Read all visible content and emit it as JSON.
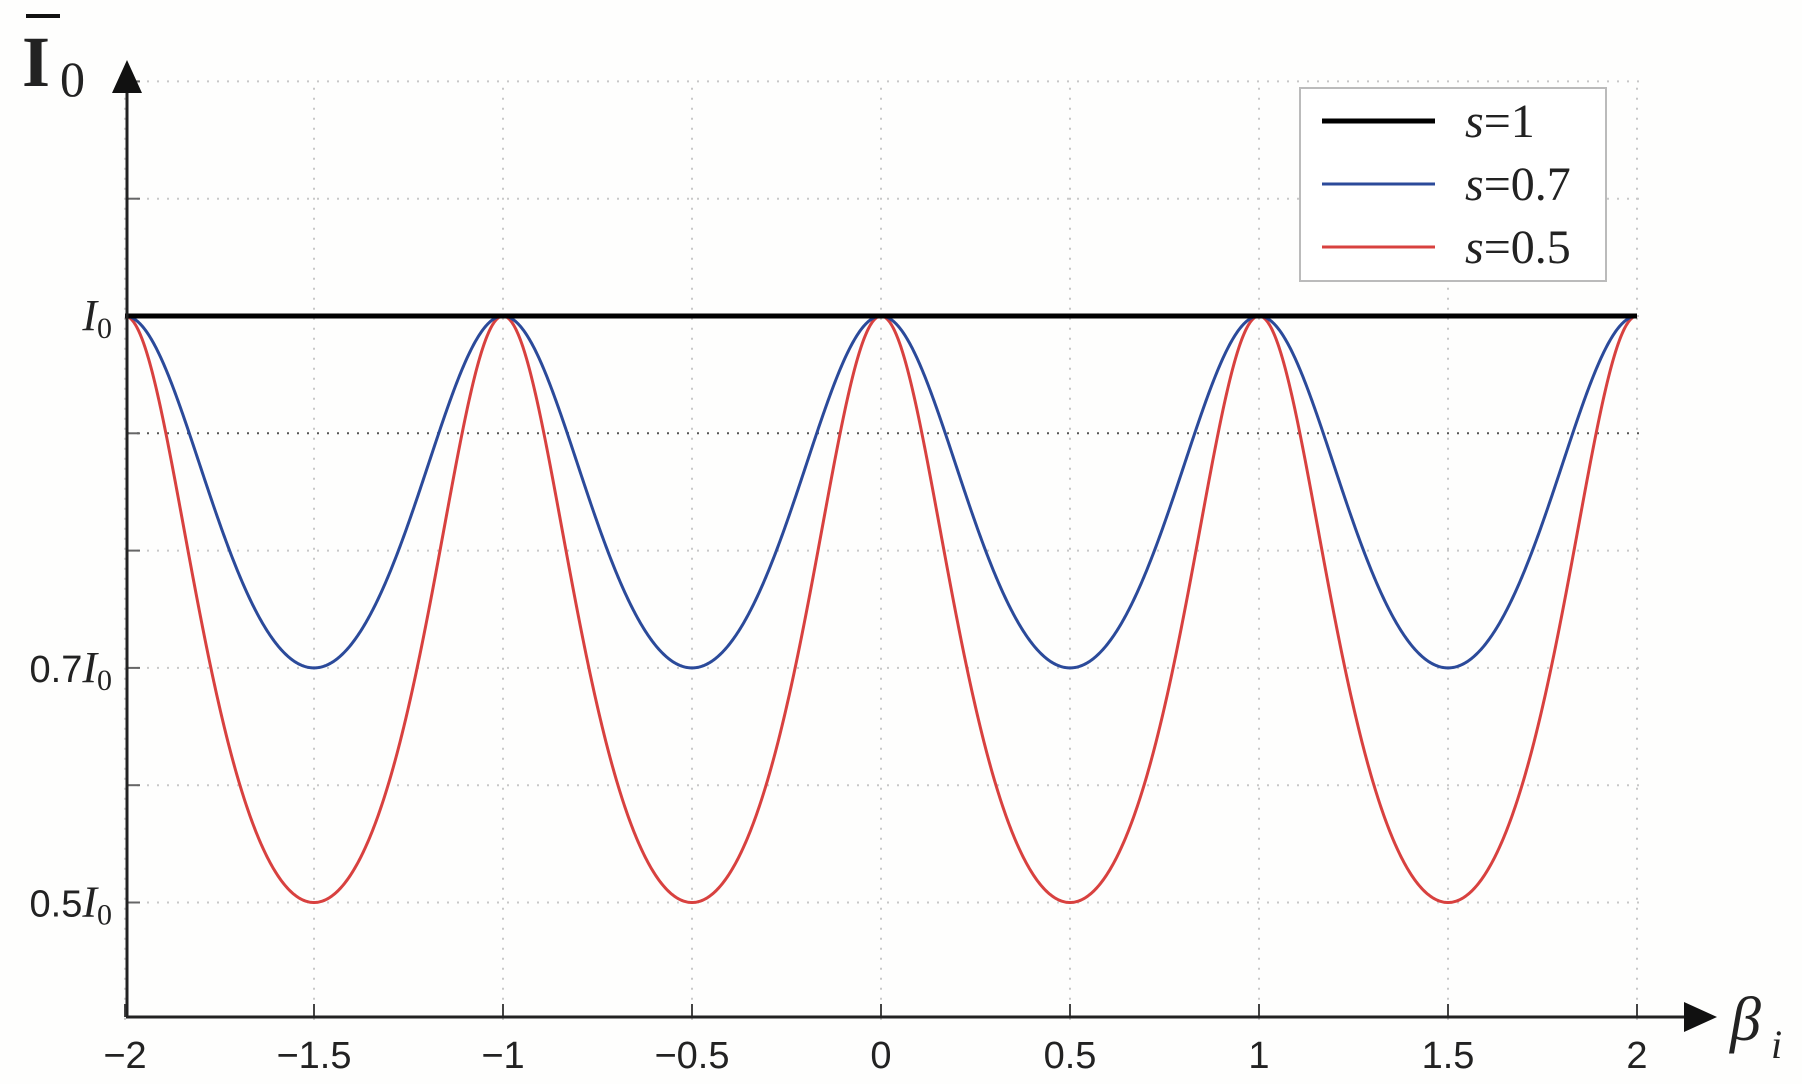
{
  "chart_data": {
    "type": "line",
    "title": "",
    "xlabel": "β_i",
    "ylabel": "Ī_0",
    "xlim": [
      -2,
      2
    ],
    "ylim": [
      0.4,
      1.25
    ],
    "x_ticks": [
      -2,
      -1.5,
      -1,
      -0.5,
      0,
      0.5,
      1,
      1.5,
      2
    ],
    "x_tick_labels": [
      "−2",
      "−1.5",
      "−1",
      "−0.5",
      "0",
      "0.5",
      "1",
      "1.5",
      "2"
    ],
    "y_ticks": [
      0.5,
      0.7,
      1.0
    ],
    "y_tick_labels": [
      "0.5I0",
      "0.7I0",
      "I0"
    ],
    "grid": true,
    "legend_position": "upper right",
    "period": 1,
    "series": [
      {
        "name": "s=1",
        "color": "#000000",
        "min": 1.0,
        "max": 1.0,
        "description": "constant at I0"
      },
      {
        "name": "s=0.7",
        "color": "#2b4a9a",
        "min": 0.7,
        "max": 1.0,
        "peaks_at": [
          -2,
          -1,
          0,
          1,
          2
        ],
        "minima_at": [
          -1.5,
          -0.5,
          0.5,
          1.5
        ]
      },
      {
        "name": "s=0.5",
        "color": "#d8413f",
        "min": 0.5,
        "max": 1.0,
        "peaks_at": [
          -2,
          -1,
          0,
          1,
          2
        ],
        "minima_at": [
          -1.5,
          -0.5,
          0.5,
          1.5
        ]
      }
    ]
  },
  "axes": {
    "y_label_main": "I",
    "y_label_sub": "0",
    "x_label_main": "β",
    "x_label_sub": "i"
  },
  "legend": {
    "items": [
      {
        "var": "s",
        "eq": "=1",
        "color": "#000000",
        "width": 5
      },
      {
        "var": "s",
        "eq": "=0.7",
        "color": "#2b4a9a",
        "width": 3
      },
      {
        "var": "s",
        "eq": "=0.5",
        "color": "#d8413f",
        "width": 3
      }
    ]
  },
  "y_labels": [
    {
      "coef": "",
      "sym": "I",
      "sub": "0",
      "value": 1.0
    },
    {
      "coef": "0.7",
      "sym": "I",
      "sub": "0",
      "value": 0.7
    },
    {
      "coef": "0.5",
      "sym": "I",
      "sub": "0",
      "value": 0.5
    }
  ]
}
